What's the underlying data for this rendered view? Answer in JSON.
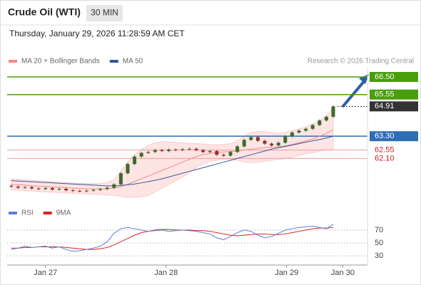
{
  "header": {
    "title": "Crude Oil (WTI)",
    "timeframe": "30 MIN",
    "timestamp": "Thursday, January 29, 2026 11:28:59 AM CET"
  },
  "chart_data": [
    {
      "type": "candlestick",
      "credit": "Research © 2026 Trading Central",
      "up_color": "#3d6b2c",
      "down_color": "#8e3030",
      "xlim": [
        -0.6,
        52
      ],
      "xticks": [
        {
          "value": 5.0,
          "label": "Jan 27"
        },
        {
          "value": 22.6,
          "label": "Jan 28"
        },
        {
          "value": 40.2,
          "label": "Jan 29"
        },
        {
          "value": 48.4,
          "label": "Jan 30"
        }
      ],
      "ylim": [
        59.96,
        67.0
      ],
      "open": [
        60.62,
        60.58,
        60.52,
        60.55,
        60.48,
        60.45,
        60.5,
        60.42,
        60.46,
        60.38,
        60.35,
        60.33,
        60.36,
        60.4,
        60.45,
        60.52,
        60.7,
        61.3,
        61.8,
        62.2,
        62.4,
        62.45,
        62.55,
        62.5,
        62.58,
        62.55,
        62.6,
        62.62,
        62.55,
        62.45,
        62.5,
        62.3,
        62.25,
        62.45,
        62.75,
        63.1,
        63.25,
        63.05,
        62.9,
        62.8,
        62.95,
        63.3,
        63.5,
        63.6,
        63.7,
        63.9,
        64.15,
        64.35
      ],
      "high": [
        60.68,
        60.64,
        60.61,
        60.61,
        60.54,
        60.56,
        60.56,
        60.52,
        60.52,
        60.44,
        60.41,
        60.42,
        60.46,
        60.51,
        60.58,
        60.76,
        61.36,
        61.86,
        62.26,
        62.46,
        62.51,
        62.61,
        62.61,
        62.64,
        62.64,
        62.66,
        62.68,
        62.68,
        62.61,
        62.56,
        62.56,
        62.36,
        62.51,
        62.81,
        63.16,
        63.31,
        63.31,
        63.11,
        62.96,
        63.01,
        63.36,
        63.56,
        63.66,
        63.76,
        63.96,
        64.21,
        64.41,
        64.96
      ],
      "low": [
        60.52,
        60.46,
        60.46,
        60.42,
        60.39,
        60.39,
        60.36,
        60.36,
        60.32,
        60.29,
        60.27,
        60.27,
        60.3,
        60.34,
        60.39,
        60.46,
        60.64,
        61.24,
        61.74,
        62.14,
        62.34,
        62.39,
        62.44,
        62.44,
        62.49,
        62.49,
        62.54,
        62.49,
        62.39,
        62.39,
        62.24,
        62.19,
        62.19,
        62.39,
        62.69,
        63.04,
        62.99,
        62.84,
        62.74,
        62.74,
        62.89,
        63.24,
        63.44,
        63.54,
        63.64,
        63.84,
        64.09,
        64.29
      ],
      "close": [
        60.58,
        60.52,
        60.55,
        60.48,
        60.45,
        60.5,
        60.42,
        60.46,
        60.38,
        60.35,
        60.33,
        60.36,
        60.4,
        60.45,
        60.52,
        60.7,
        61.3,
        61.8,
        62.2,
        62.4,
        62.45,
        62.55,
        62.5,
        62.58,
        62.55,
        62.6,
        62.62,
        62.55,
        62.45,
        62.5,
        62.3,
        62.25,
        62.45,
        62.75,
        63.1,
        63.25,
        63.05,
        62.9,
        62.8,
        62.95,
        63.3,
        63.5,
        63.6,
        63.7,
        63.9,
        64.15,
        64.35,
        64.91
      ],
      "series": [
        {
          "name": "MA 20 + Bollinger Bands",
          "color": "#f08a84",
          "band_color": "#ffb3b3",
          "values": [
            60.7,
            60.68,
            60.66,
            60.63,
            60.6,
            60.58,
            60.56,
            60.54,
            60.52,
            60.5,
            60.48,
            60.46,
            60.45,
            60.45,
            60.46,
            60.5,
            60.58,
            60.7,
            60.85,
            61.0,
            61.15,
            61.3,
            61.45,
            61.6,
            61.75,
            61.9,
            62.05,
            62.2,
            62.3,
            62.38,
            62.42,
            62.45,
            62.47,
            62.5,
            62.55,
            62.6,
            62.65,
            62.68,
            62.7,
            62.72,
            62.78,
            62.85,
            62.95,
            63.05,
            63.15,
            63.3,
            63.45,
            63.65
          ],
          "upper": [
            61.0,
            60.98,
            60.95,
            60.92,
            60.9,
            60.87,
            60.85,
            60.82,
            60.8,
            60.78,
            60.76,
            60.75,
            60.74,
            60.75,
            60.8,
            60.95,
            61.4,
            61.9,
            62.3,
            62.6,
            62.8,
            62.95,
            63.0,
            63.0,
            62.98,
            62.95,
            62.92,
            62.9,
            62.88,
            62.85,
            62.85,
            62.85,
            62.9,
            63.05,
            63.3,
            63.5,
            63.55,
            63.55,
            63.5,
            63.45,
            63.5,
            63.6,
            63.7,
            63.8,
            63.95,
            64.15,
            64.4,
            64.8
          ],
          "lower": [
            60.4,
            60.38,
            60.36,
            60.34,
            60.3,
            60.29,
            60.27,
            60.26,
            60.24,
            60.22,
            60.2,
            60.18,
            60.16,
            60.15,
            60.12,
            60.1,
            60.05,
            60.0,
            60.0,
            60.02,
            60.1,
            60.3,
            60.5,
            60.7,
            60.9,
            61.1,
            61.3,
            61.6,
            61.8,
            61.95,
            62.0,
            62.05,
            62.05,
            62.0,
            61.9,
            61.85,
            61.9,
            61.95,
            62.0,
            62.05,
            62.1,
            62.15,
            62.25,
            62.35,
            62.4,
            62.5,
            62.55,
            62.6
          ]
        },
        {
          "name": "MA 50",
          "color": "#35579e",
          "values": [
            60.9,
            60.88,
            60.86,
            60.84,
            60.82,
            60.8,
            60.78,
            60.76,
            60.74,
            60.72,
            60.7,
            60.68,
            60.66,
            60.64,
            60.62,
            60.62,
            60.64,
            60.68,
            60.72,
            60.78,
            60.85,
            60.92,
            61.0,
            61.1,
            61.2,
            61.3,
            61.4,
            61.5,
            61.6,
            61.7,
            61.8,
            61.9,
            62.0,
            62.1,
            62.2,
            62.3,
            62.4,
            62.5,
            62.6,
            62.68,
            62.75,
            62.82,
            62.9,
            62.98,
            63.05,
            63.12,
            63.2,
            63.3
          ]
        }
      ],
      "levels": [
        {
          "value": 66.5,
          "label": "66.50",
          "color": "#4a9e0c",
          "boxed": true,
          "dashed": false
        },
        {
          "value": 65.55,
          "label": "65.55",
          "color": "#4a9e0c",
          "boxed": true,
          "dashed": false
        },
        {
          "value": 64.91,
          "label": "64.91",
          "color": "#333333",
          "boxed": true,
          "dashed": true
        },
        {
          "value": 63.3,
          "label": "63.30",
          "color": "#2f6db5",
          "boxed": true,
          "dashed": false
        },
        {
          "value": 62.55,
          "label": "62.55",
          "color": "#f29a9a",
          "boxed": false,
          "dashed": false
        },
        {
          "value": 62.1,
          "label": "62.10",
          "color": "#f29a9a",
          "boxed": false,
          "dashed": false
        }
      ]
    },
    {
      "type": "line",
      "ylim": [
        18,
        82
      ],
      "yticks": [
        70,
        50,
        30
      ],
      "series": [
        {
          "name": "RSI",
          "color": "#5b7fd6",
          "values": [
            40,
            42,
            45,
            43,
            44,
            45,
            42,
            44,
            40,
            37,
            38,
            40,
            42,
            45,
            52,
            65,
            72,
            74,
            72,
            70,
            68,
            69,
            70,
            68,
            69,
            70,
            69,
            68,
            66,
            64,
            58,
            55,
            60,
            66,
            70,
            68,
            62,
            58,
            60,
            65,
            70,
            72,
            74,
            75,
            76,
            74,
            72,
            79
          ]
        },
        {
          "name": "9MA",
          "color": "#d9231f",
          "values": [
            42,
            42,
            43,
            43,
            44,
            44,
            44,
            44,
            43,
            42,
            41,
            40,
            40,
            41,
            43,
            47,
            52,
            57,
            62,
            66,
            68,
            70,
            71,
            71,
            70,
            70,
            70,
            69,
            69,
            68,
            66,
            64,
            62,
            61,
            62,
            63,
            64,
            64,
            63,
            63,
            64,
            66,
            68,
            70,
            72,
            73,
            73,
            74
          ]
        }
      ]
    }
  ]
}
